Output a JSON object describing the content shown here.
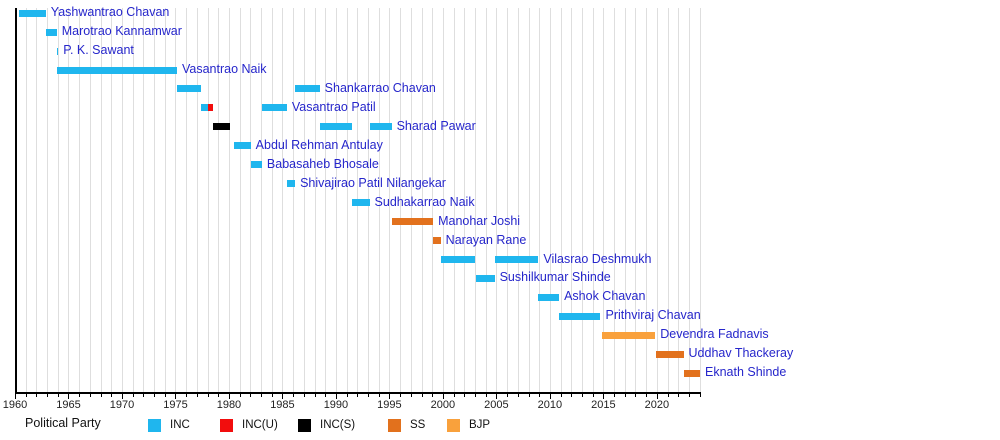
{
  "chart_data": {
    "type": "timeline",
    "title": "",
    "x_axis": {
      "min": 1960,
      "max": 2024.03,
      "major_ticks": [
        1960,
        1965,
        1970,
        1975,
        1980,
        1985,
        1990,
        1995,
        2000,
        2005,
        2010,
        2015,
        2020
      ],
      "minor_tick_step": 1,
      "minor_tick_start": 1960,
      "minor_tick_end": 2024,
      "grid": true
    },
    "party_colors": {
      "INC": "#1FB6EE",
      "INC(U)": "#F20D0D",
      "INC(S)": "#000000",
      "SS": "#E2711D",
      "BJP": "#F9A13C"
    },
    "person_label_color": "#2626CB",
    "rows": [
      {
        "name": "Yashwantrao Chavan",
        "segments": [
          {
            "start": 1960.33,
            "end": 1962.88,
            "party": "INC"
          }
        ]
      },
      {
        "name": "Marotrao Kannamwar",
        "segments": [
          {
            "start": 1962.89,
            "end": 1963.9,
            "party": "INC"
          }
        ]
      },
      {
        "name": "P. K. Sawant",
        "segments": [
          {
            "start": 1963.9,
            "end": 1963.95,
            "party": "INC"
          }
        ]
      },
      {
        "name": "Vasantrao Naik",
        "segments": [
          {
            "start": 1963.93,
            "end": 1975.14,
            "party": "INC"
          }
        ]
      },
      {
        "name": "Shankarrao Chavan",
        "segments": [
          {
            "start": 1975.14,
            "end": 1977.37,
            "party": "INC"
          },
          {
            "start": 1986.19,
            "end": 1988.48,
            "party": "INC"
          }
        ]
      },
      {
        "name": "Vasantrao Patil",
        "segments": [
          {
            "start": 1977.37,
            "end": 1978.05,
            "party": "INC"
          },
          {
            "start": 1978.05,
            "end": 1978.54,
            "party": "INC(U)"
          },
          {
            "start": 1983.09,
            "end": 1985.41,
            "party": "INC"
          }
        ]
      },
      {
        "name": "Sharad Pawar",
        "segments": [
          {
            "start": 1978.54,
            "end": 1980.12,
            "party": "INC(S)"
          },
          {
            "start": 1988.48,
            "end": 1991.48,
            "party": "INC"
          },
          {
            "start": 1993.18,
            "end": 1995.2,
            "party": "INC"
          }
        ]
      },
      {
        "name": "Abdul Rehman Antulay",
        "segments": [
          {
            "start": 1980.44,
            "end": 1982.03,
            "party": "INC"
          }
        ]
      },
      {
        "name": "Babasaheb Bhosale",
        "segments": [
          {
            "start": 1982.05,
            "end": 1983.08,
            "party": "INC"
          }
        ]
      },
      {
        "name": "Shivajirao Patil Nilangekar",
        "segments": [
          {
            "start": 1985.42,
            "end": 1986.18,
            "party": "INC"
          }
        ]
      },
      {
        "name": "Sudhakarrao Naik",
        "segments": [
          {
            "start": 1991.48,
            "end": 1993.14,
            "party": "INC"
          }
        ]
      },
      {
        "name": "Manohar Joshi",
        "segments": [
          {
            "start": 1995.2,
            "end": 1999.08,
            "party": "SS"
          }
        ]
      },
      {
        "name": "Narayan Rane",
        "segments": [
          {
            "start": 1999.09,
            "end": 1999.79,
            "party": "SS"
          }
        ]
      },
      {
        "name": "Vilasrao Deshmukh",
        "segments": [
          {
            "start": 1999.8,
            "end": 2003.04,
            "party": "INC"
          },
          {
            "start": 2004.83,
            "end": 2008.92,
            "party": "INC"
          }
        ]
      },
      {
        "name": "Sushilkumar Shinde",
        "segments": [
          {
            "start": 2003.05,
            "end": 2004.83,
            "party": "INC"
          }
        ]
      },
      {
        "name": "Ashok Chavan",
        "segments": [
          {
            "start": 2008.93,
            "end": 2010.86,
            "party": "INC"
          }
        ]
      },
      {
        "name": "Prithviraj Chavan",
        "segments": [
          {
            "start": 2010.86,
            "end": 2014.73,
            "party": "INC"
          }
        ]
      },
      {
        "name": "Devendra Fadnavis",
        "segments": [
          {
            "start": 2014.83,
            "end": 2019.85,
            "party": "BJP"
          }
        ]
      },
      {
        "name": "Uddhav Thackeray",
        "segments": [
          {
            "start": 2019.91,
            "end": 2022.49,
            "party": "SS"
          }
        ]
      },
      {
        "name": "Eknath Shinde",
        "segments": [
          {
            "start": 2022.5,
            "end": 2024.03,
            "party": "SS"
          }
        ]
      }
    ]
  },
  "legend": {
    "title": "Political Party",
    "items": [
      {
        "label": "INC",
        "color": "#1FB6EE"
      },
      {
        "label": "INC(U)",
        "color": "#F20D0D"
      },
      {
        "label": "INC(S)",
        "color": "#000000"
      },
      {
        "label": "SS",
        "color": "#E2711D"
      },
      {
        "label": "BJP",
        "color": "#F9A13C"
      }
    ]
  }
}
